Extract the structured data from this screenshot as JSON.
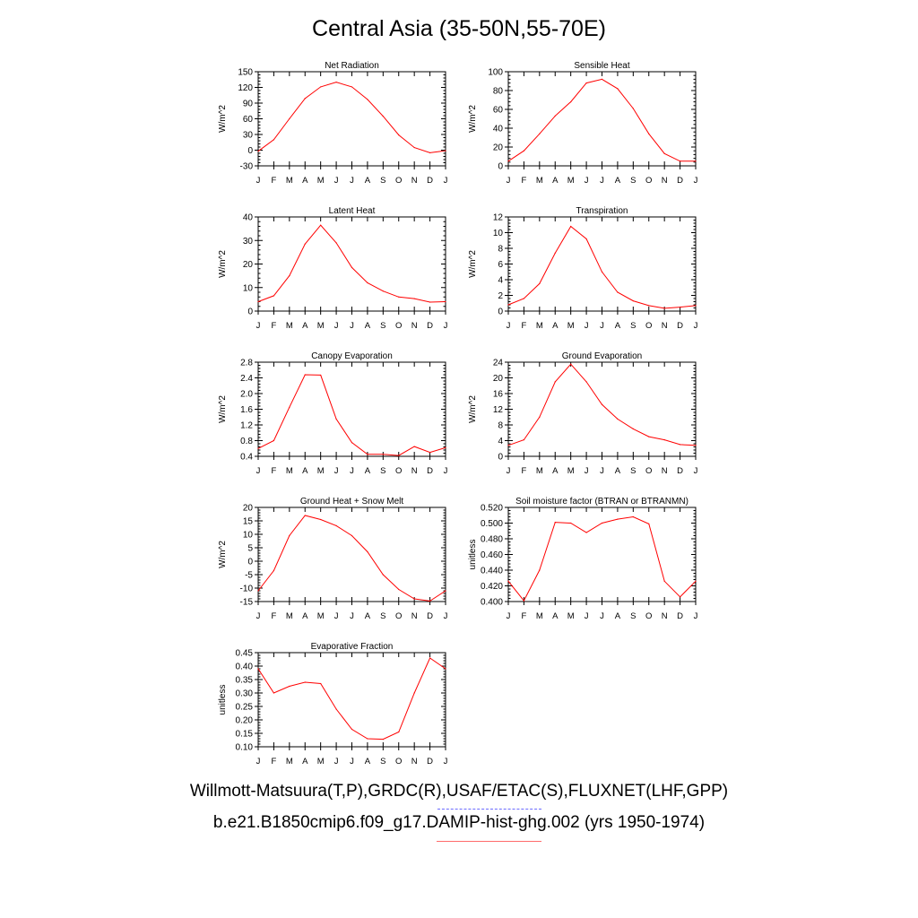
{
  "title": "Central Asia (35-50N,55-70E)",
  "legend": {
    "observations": "Willmott-Matsuura(T,P),GRDC(R),USAF/ETAC(S),FLUXNET(LHF,GPP)",
    "model": "b.e21.B1850cmip6.f09_g17.DAMIP-hist-ghg.002 (yrs 1950-1974)",
    "observations_color": "#6b6bff",
    "model_color": "#ff0000"
  },
  "months": [
    "J",
    "F",
    "M",
    "A",
    "M",
    "J",
    "J",
    "A",
    "S",
    "O",
    "N",
    "D",
    "J"
  ],
  "chart_data": [
    {
      "type": "line",
      "title": "Net Radiation",
      "ylabel": "W/m^2",
      "ylim": [
        -30,
        150
      ],
      "yticks": [
        "-30",
        "0",
        "30",
        "60",
        "90",
        "120",
        "150"
      ],
      "yticks_v": [
        -30,
        0,
        30,
        60,
        90,
        120,
        150
      ],
      "categories": [
        "J",
        "F",
        "M",
        "A",
        "M",
        "J",
        "J",
        "A",
        "S",
        "O",
        "N",
        "D",
        "J"
      ],
      "values": [
        -2,
        20,
        60,
        99,
        121,
        130,
        121,
        97,
        65,
        29,
        5,
        -5,
        -1
      ]
    },
    {
      "type": "line",
      "title": "Sensible Heat",
      "ylabel": "W/m^2",
      "ylim": [
        0,
        100
      ],
      "yticks": [
        "0",
        "20",
        "40",
        "60",
        "80",
        "100"
      ],
      "yticks_v": [
        0,
        20,
        40,
        60,
        80,
        100
      ],
      "categories": [
        "J",
        "F",
        "M",
        "A",
        "M",
        "J",
        "J",
        "A",
        "S",
        "O",
        "N",
        "D",
        "J"
      ],
      "values": [
        5,
        16,
        34,
        53,
        68,
        88,
        92,
        82,
        61,
        34,
        13,
        5,
        5
      ]
    },
    {
      "type": "line",
      "title": "Latent Heat",
      "ylabel": "W/m^2",
      "ylim": [
        0,
        40
      ],
      "yticks": [
        "0",
        "10",
        "20",
        "30",
        "40"
      ],
      "yticks_v": [
        0,
        10,
        20,
        30,
        40
      ],
      "categories": [
        "J",
        "F",
        "M",
        "A",
        "M",
        "J",
        "J",
        "A",
        "S",
        "O",
        "N",
        "D",
        "J"
      ],
      "values": [
        4,
        6.5,
        15,
        28.5,
        36.5,
        29,
        18.5,
        12,
        8.5,
        6,
        5.3,
        3.8,
        4
      ]
    },
    {
      "type": "line",
      "title": "Transpiration",
      "ylabel": "W/m^2",
      "ylim": [
        0,
        12
      ],
      "yticks": [
        "0",
        "2",
        "4",
        "6",
        "8",
        "10",
        "12"
      ],
      "yticks_v": [
        0,
        2,
        4,
        6,
        8,
        10,
        12
      ],
      "categories": [
        "J",
        "F",
        "M",
        "A",
        "M",
        "J",
        "J",
        "A",
        "S",
        "O",
        "N",
        "D",
        "J"
      ],
      "values": [
        0.8,
        1.6,
        3.5,
        7.4,
        10.8,
        9.2,
        5,
        2.4,
        1.3,
        0.7,
        0.35,
        0.5,
        0.7
      ]
    },
    {
      "type": "line",
      "title": "Canopy Evaporation",
      "ylabel": "W/m^2",
      "ylim": [
        0.4,
        2.8
      ],
      "yticks": [
        "0.4",
        "0.8",
        "1.2",
        "1.6",
        "2.0",
        "2.4",
        "2.8"
      ],
      "yticks_v": [
        0.4,
        0.8,
        1.2,
        1.6,
        2.0,
        2.4,
        2.8
      ],
      "categories": [
        "J",
        "F",
        "M",
        "A",
        "M",
        "J",
        "J",
        "A",
        "S",
        "O",
        "N",
        "D",
        "J"
      ],
      "values": [
        0.6,
        0.8,
        1.65,
        2.48,
        2.47,
        1.35,
        0.75,
        0.45,
        0.45,
        0.42,
        0.65,
        0.5,
        0.62
      ]
    },
    {
      "type": "line",
      "title": "Ground Evaporation",
      "ylabel": "W/m^2",
      "ylim": [
        0,
        24
      ],
      "yticks": [
        "0",
        "4",
        "8",
        "12",
        "16",
        "20",
        "24"
      ],
      "yticks_v": [
        0,
        4,
        8,
        12,
        16,
        20,
        24
      ],
      "categories": [
        "J",
        "F",
        "M",
        "A",
        "M",
        "J",
        "J",
        "A",
        "S",
        "O",
        "N",
        "D",
        "J"
      ],
      "values": [
        2.8,
        4.2,
        10,
        19,
        23.5,
        19,
        13.2,
        9.5,
        7,
        5,
        4.2,
        3,
        2.8
      ]
    },
    {
      "type": "line",
      "title": "Ground Heat + Snow Melt",
      "ylabel": "W/m^2",
      "ylim": [
        -15,
        20
      ],
      "yticks": [
        "-15",
        "-10",
        "-5",
        "0",
        "5",
        "10",
        "15",
        "20"
      ],
      "yticks_v": [
        -15,
        -10,
        -5,
        0,
        5,
        10,
        15,
        20
      ],
      "categories": [
        "J",
        "F",
        "M",
        "A",
        "M",
        "J",
        "J",
        "A",
        "S",
        "O",
        "N",
        "D",
        "J"
      ],
      "values": [
        -11,
        -3.5,
        9.5,
        17,
        15.5,
        13.2,
        9.5,
        3.5,
        -5,
        -10.5,
        -14,
        -14.8,
        -11
      ]
    },
    {
      "type": "line",
      "title": "Soil moisture factor (BTRAN or BTRANMN)",
      "ylabel": "unitless",
      "ylim": [
        0.4,
        0.52
      ],
      "yticks": [
        "0.400",
        "0.420",
        "0.440",
        "0.460",
        "0.480",
        "0.500",
        "0.520"
      ],
      "yticks_v": [
        0.4,
        0.42,
        0.44,
        0.46,
        0.48,
        0.5,
        0.52
      ],
      "categories": [
        "J",
        "F",
        "M",
        "A",
        "M",
        "J",
        "J",
        "A",
        "S",
        "O",
        "N",
        "D",
        "J"
      ],
      "values": [
        0.426,
        0.401,
        0.44,
        0.501,
        0.5,
        0.488,
        0.5,
        0.505,
        0.508,
        0.499,
        0.426,
        0.406,
        0.426
      ]
    },
    {
      "type": "line",
      "title": "Evaporative Fraction",
      "ylabel": "unitless",
      "ylim": [
        0.1,
        0.45
      ],
      "yticks": [
        "0.10",
        "0.15",
        "0.20",
        "0.25",
        "0.30",
        "0.35",
        "0.40",
        "0.45"
      ],
      "yticks_v": [
        0.1,
        0.15,
        0.2,
        0.25,
        0.3,
        0.35,
        0.4,
        0.45
      ],
      "categories": [
        "J",
        "F",
        "M",
        "A",
        "M",
        "J",
        "J",
        "A",
        "S",
        "O",
        "N",
        "D",
        "J"
      ],
      "values": [
        0.39,
        0.3,
        0.325,
        0.34,
        0.335,
        0.24,
        0.165,
        0.13,
        0.128,
        0.155,
        0.3,
        0.43,
        0.39
      ]
    }
  ]
}
